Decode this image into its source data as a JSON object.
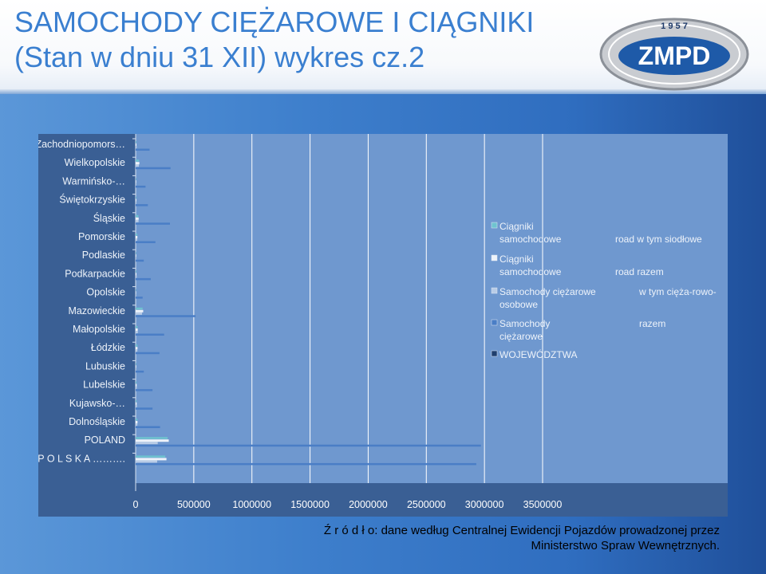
{
  "title": {
    "line1": "SAMOCHODY  CIĘŻAROWE  I  CIĄGNIKI",
    "line2": "(Stan w dniu 31 XII) wykres cz.2"
  },
  "logo": {
    "year": "1 9 5 7",
    "text": "ZMPD"
  },
  "source": {
    "line1": "Ź r ó d ł o: dane według Centralnej Ewidencji Pojazdów prowadzonej przez",
    "line2": "Ministerstwo Spraw Wewnętrznych."
  },
  "colors": {
    "title": "#3a7fd0",
    "panel": "#3a5f94",
    "plot": "#6f98cf",
    "grid": "#ffffff"
  },
  "chart_data": {
    "type": "bar",
    "orientation": "horizontal",
    "categories": [
      "Zachodniopomors…",
      "Wielkopolskie",
      "Warmińsko-…",
      "Świętokrzyskie",
      "Śląskie",
      "Pomorskie",
      "Podlaskie",
      "Podkarpackie",
      "Opolskie",
      "Mazowieckie",
      "Małopolskie",
      "Łódzkie",
      "Lubuskie",
      "Lubelskie",
      "Kujawsko-…",
      "Dolnośląskie",
      "POLAND",
      "P O L S K A ………."
    ],
    "series": [
      {
        "name": "Samochody ciężarowe razem",
        "color": "#4a7ec6",
        "values": [
          120000,
          300000,
          85000,
          105000,
          295000,
          170000,
          70000,
          130000,
          60000,
          515000,
          245000,
          205000,
          70000,
          145000,
          145000,
          210000,
          2970000,
          2930000
        ]
      },
      {
        "name": "Samochody ciężarowe w tym cięża-rowo-osobowe",
        "color": "#b9cce6",
        "values": [
          9000,
          28000,
          6000,
          7000,
          25000,
          14000,
          5000,
          9000,
          5000,
          55000,
          19000,
          15000,
          5000,
          10000,
          11000,
          15000,
          190000,
          185000
        ]
      },
      {
        "name": "Ciągniki samochodowe road razem",
        "color": "#eef3fa",
        "values": [
          7000,
          32000,
          5000,
          6000,
          26000,
          15000,
          5000,
          7000,
          4000,
          65000,
          18000,
          16000,
          5000,
          9000,
          9000,
          16000,
          285000,
          265000
        ]
      },
      {
        "name": "Ciągniki samochodowe road w tym siodłowe",
        "color": "#6fc3cf",
        "values": [
          6000,
          29000,
          4500,
          5500,
          24000,
          14000,
          4500,
          6000,
          3600,
          60000,
          16000,
          15000,
          4500,
          8000,
          8000,
          15000,
          275000,
          255000
        ]
      },
      {
        "name": "WOJEWÓDZTWA",
        "color": "#1f3f6e",
        "values": [
          0,
          0,
          0,
          0,
          0,
          0,
          0,
          0,
          0,
          0,
          0,
          0,
          0,
          0,
          0,
          0,
          0,
          0
        ]
      }
    ],
    "xlim": [
      0,
      3500000
    ],
    "xticks": [
      "0",
      "500000",
      "1000000",
      "1500000",
      "2000000",
      "2500000",
      "3000000",
      "3500000"
    ],
    "grid": true,
    "legend_position": "inside-right",
    "legend": [
      {
        "name": "Ciągniki samochodowe",
        "suffix": "road w tym siodłowe",
        "color": "#6fc3cf"
      },
      {
        "name": "Ciągniki samochodowe",
        "suffix": "road razem",
        "color": "#eef3fa"
      },
      {
        "name": "Samochody ciężarowe osobowe",
        "suffix": "w tym cięża-rowo-",
        "color": "#b9cce6"
      },
      {
        "name": "Samochody ciężarowe",
        "suffix": "razem",
        "color": "#4a7ec6"
      },
      {
        "name": "WOJEWÓDZTWA",
        "suffix": "",
        "color": "#1f3f6e"
      }
    ]
  }
}
